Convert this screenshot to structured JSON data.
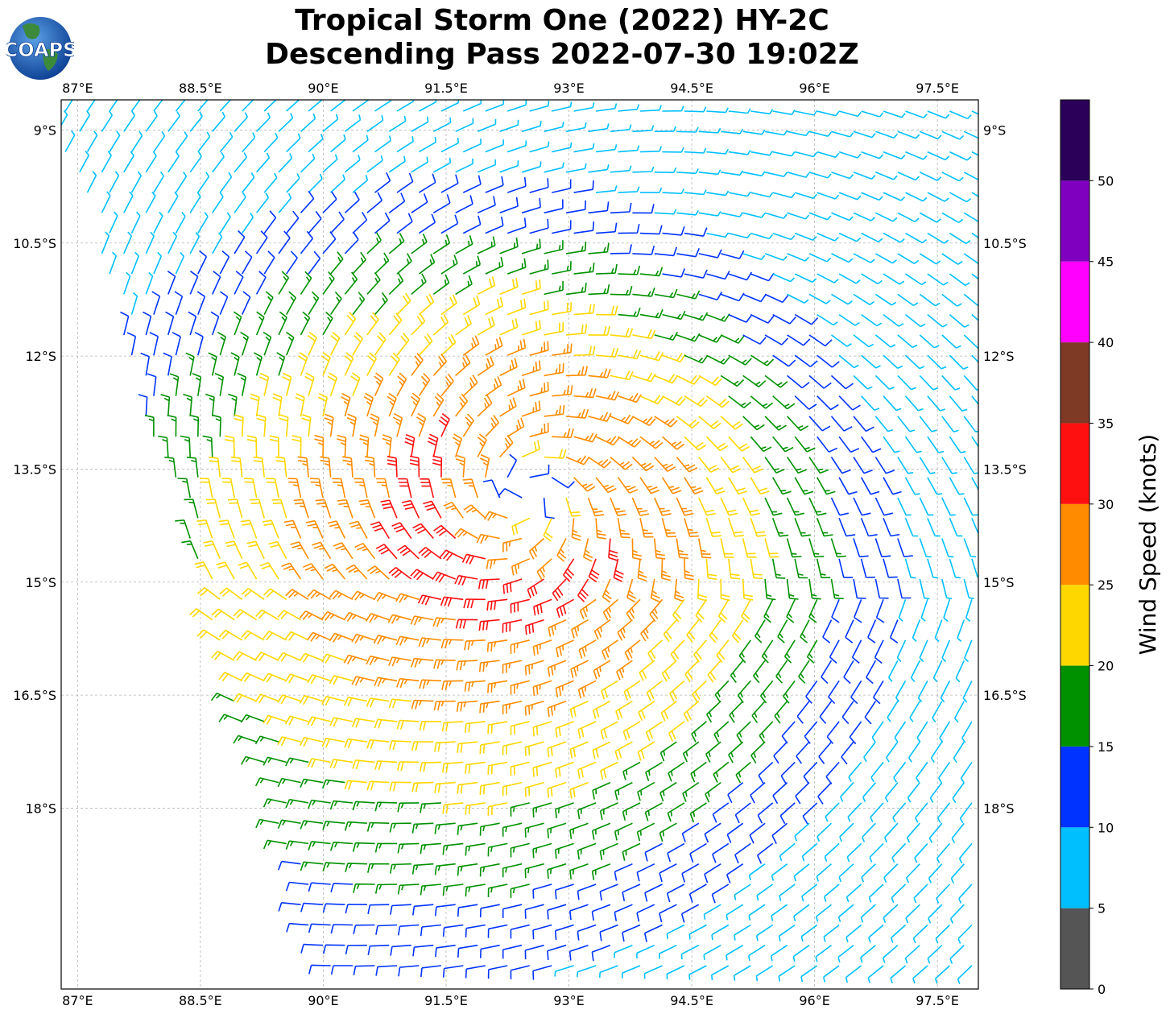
{
  "title": {
    "line1": "Tropical Storm One (2022) HY-2C",
    "line2": "Descending Pass 2022-07-30 19:02Z"
  },
  "logo": {
    "text": "COAPS",
    "icon": "globe-logo-icon"
  },
  "map": {
    "lon_range": [
      86.8,
      98.0
    ],
    "lat_range": [
      -20.4,
      -8.6
    ],
    "lon_ticks": [
      {
        "value": 87,
        "label": "87°E"
      },
      {
        "value": 88.5,
        "label": "88.5°E"
      },
      {
        "value": 90,
        "label": "90°E"
      },
      {
        "value": 91.5,
        "label": "91.5°E"
      },
      {
        "value": 93,
        "label": "93°E"
      },
      {
        "value": 94.5,
        "label": "94.5°E"
      },
      {
        "value": 96,
        "label": "96°E"
      },
      {
        "value": 97.5,
        "label": "97.5°E"
      }
    ],
    "lat_ticks": [
      {
        "value": -9,
        "label": "9°S"
      },
      {
        "value": -10.5,
        "label": "10.5°S"
      },
      {
        "value": -12,
        "label": "12°S"
      },
      {
        "value": -13.5,
        "label": "13.5°S"
      },
      {
        "value": -15,
        "label": "15°S"
      },
      {
        "value": -16.5,
        "label": "16.5°S"
      },
      {
        "value": -18,
        "label": "18°S"
      }
    ],
    "gridlines": true,
    "storm_center": {
      "lon": 92.5,
      "lat": -13.8
    },
    "swath_left_edge": [
      {
        "lon": 86.8,
        "lat": -9.2
      },
      {
        "lon": 90.0,
        "lat": -20.4
      }
    ]
  },
  "colorbar": {
    "label": "Wind Speed (knots)",
    "bounds": [
      0,
      5,
      10,
      15,
      20,
      25,
      30,
      35,
      40,
      45,
      50,
      55
    ],
    "tick_labels": [
      "0",
      "5",
      "10",
      "15",
      "20",
      "25",
      "30",
      "35",
      "40",
      "45",
      "50"
    ],
    "colors": [
      "#555555",
      "#00bfff",
      "#0033ff",
      "#009100",
      "#ffd700",
      "#ff8c00",
      "#ff1010",
      "#7f3a26",
      "#ff00ff",
      "#8000c0",
      "#2b0058"
    ]
  }
}
